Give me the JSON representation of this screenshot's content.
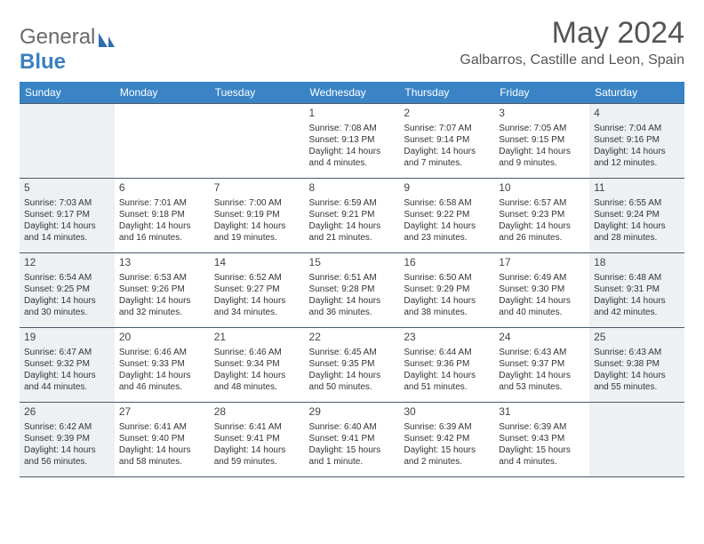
{
  "brand": {
    "word1": "General",
    "word2": "Blue"
  },
  "title": "May 2024",
  "location": "Galbarros, Castille and Leon, Spain",
  "colors": {
    "header_bg": "#3a84c5",
    "header_text": "#ffffff",
    "shade": "#eef1f3",
    "border": "#4a5a6a",
    "brand_gray": "#6a6a6a",
    "brand_blue": "#3a7fbf"
  },
  "weekdays": [
    "Sunday",
    "Monday",
    "Tuesday",
    "Wednesday",
    "Thursday",
    "Friday",
    "Saturday"
  ],
  "weeks": [
    [
      {
        "day": "",
        "sunrise": "",
        "sunset": "",
        "daylight": "",
        "shaded": true
      },
      {
        "day": "",
        "sunrise": "",
        "sunset": "",
        "daylight": "",
        "shaded": false
      },
      {
        "day": "",
        "sunrise": "",
        "sunset": "",
        "daylight": "",
        "shaded": false
      },
      {
        "day": "1",
        "sunrise": "7:08 AM",
        "sunset": "9:13 PM",
        "daylight": "14 hours and 4 minutes.",
        "shaded": false
      },
      {
        "day": "2",
        "sunrise": "7:07 AM",
        "sunset": "9:14 PM",
        "daylight": "14 hours and 7 minutes.",
        "shaded": false
      },
      {
        "day": "3",
        "sunrise": "7:05 AM",
        "sunset": "9:15 PM",
        "daylight": "14 hours and 9 minutes.",
        "shaded": false
      },
      {
        "day": "4",
        "sunrise": "7:04 AM",
        "sunset": "9:16 PM",
        "daylight": "14 hours and 12 minutes.",
        "shaded": true
      }
    ],
    [
      {
        "day": "5",
        "sunrise": "7:03 AM",
        "sunset": "9:17 PM",
        "daylight": "14 hours and 14 minutes.",
        "shaded": true
      },
      {
        "day": "6",
        "sunrise": "7:01 AM",
        "sunset": "9:18 PM",
        "daylight": "14 hours and 16 minutes.",
        "shaded": false
      },
      {
        "day": "7",
        "sunrise": "7:00 AM",
        "sunset": "9:19 PM",
        "daylight": "14 hours and 19 minutes.",
        "shaded": false
      },
      {
        "day": "8",
        "sunrise": "6:59 AM",
        "sunset": "9:21 PM",
        "daylight": "14 hours and 21 minutes.",
        "shaded": false
      },
      {
        "day": "9",
        "sunrise": "6:58 AM",
        "sunset": "9:22 PM",
        "daylight": "14 hours and 23 minutes.",
        "shaded": false
      },
      {
        "day": "10",
        "sunrise": "6:57 AM",
        "sunset": "9:23 PM",
        "daylight": "14 hours and 26 minutes.",
        "shaded": false
      },
      {
        "day": "11",
        "sunrise": "6:55 AM",
        "sunset": "9:24 PM",
        "daylight": "14 hours and 28 minutes.",
        "shaded": true
      }
    ],
    [
      {
        "day": "12",
        "sunrise": "6:54 AM",
        "sunset": "9:25 PM",
        "daylight": "14 hours and 30 minutes.",
        "shaded": true
      },
      {
        "day": "13",
        "sunrise": "6:53 AM",
        "sunset": "9:26 PM",
        "daylight": "14 hours and 32 minutes.",
        "shaded": false
      },
      {
        "day": "14",
        "sunrise": "6:52 AM",
        "sunset": "9:27 PM",
        "daylight": "14 hours and 34 minutes.",
        "shaded": false
      },
      {
        "day": "15",
        "sunrise": "6:51 AM",
        "sunset": "9:28 PM",
        "daylight": "14 hours and 36 minutes.",
        "shaded": false
      },
      {
        "day": "16",
        "sunrise": "6:50 AM",
        "sunset": "9:29 PM",
        "daylight": "14 hours and 38 minutes.",
        "shaded": false
      },
      {
        "day": "17",
        "sunrise": "6:49 AM",
        "sunset": "9:30 PM",
        "daylight": "14 hours and 40 minutes.",
        "shaded": false
      },
      {
        "day": "18",
        "sunrise": "6:48 AM",
        "sunset": "9:31 PM",
        "daylight": "14 hours and 42 minutes.",
        "shaded": true
      }
    ],
    [
      {
        "day": "19",
        "sunrise": "6:47 AM",
        "sunset": "9:32 PM",
        "daylight": "14 hours and 44 minutes.",
        "shaded": true
      },
      {
        "day": "20",
        "sunrise": "6:46 AM",
        "sunset": "9:33 PM",
        "daylight": "14 hours and 46 minutes.",
        "shaded": false
      },
      {
        "day": "21",
        "sunrise": "6:46 AM",
        "sunset": "9:34 PM",
        "daylight": "14 hours and 48 minutes.",
        "shaded": false
      },
      {
        "day": "22",
        "sunrise": "6:45 AM",
        "sunset": "9:35 PM",
        "daylight": "14 hours and 50 minutes.",
        "shaded": false
      },
      {
        "day": "23",
        "sunrise": "6:44 AM",
        "sunset": "9:36 PM",
        "daylight": "14 hours and 51 minutes.",
        "shaded": false
      },
      {
        "day": "24",
        "sunrise": "6:43 AM",
        "sunset": "9:37 PM",
        "daylight": "14 hours and 53 minutes.",
        "shaded": false
      },
      {
        "day": "25",
        "sunrise": "6:43 AM",
        "sunset": "9:38 PM",
        "daylight": "14 hours and 55 minutes.",
        "shaded": true
      }
    ],
    [
      {
        "day": "26",
        "sunrise": "6:42 AM",
        "sunset": "9:39 PM",
        "daylight": "14 hours and 56 minutes.",
        "shaded": true
      },
      {
        "day": "27",
        "sunrise": "6:41 AM",
        "sunset": "9:40 PM",
        "daylight": "14 hours and 58 minutes.",
        "shaded": false
      },
      {
        "day": "28",
        "sunrise": "6:41 AM",
        "sunset": "9:41 PM",
        "daylight": "14 hours and 59 minutes.",
        "shaded": false
      },
      {
        "day": "29",
        "sunrise": "6:40 AM",
        "sunset": "9:41 PM",
        "daylight": "15 hours and 1 minute.",
        "shaded": false
      },
      {
        "day": "30",
        "sunrise": "6:39 AM",
        "sunset": "9:42 PM",
        "daylight": "15 hours and 2 minutes.",
        "shaded": false
      },
      {
        "day": "31",
        "sunrise": "6:39 AM",
        "sunset": "9:43 PM",
        "daylight": "15 hours and 4 minutes.",
        "shaded": false
      },
      {
        "day": "",
        "sunrise": "",
        "sunset": "",
        "daylight": "",
        "shaded": true
      }
    ]
  ]
}
